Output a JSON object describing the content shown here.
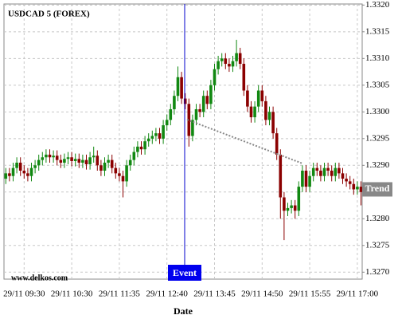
{
  "chart_data": {
    "type": "candlestick",
    "title": "USDCAD 5 (FOREX)",
    "source": "www.delkos.com",
    "x_label": "Date",
    "event": {
      "label": "Event"
    },
    "trend": {
      "label": "Trend",
      "value": 1.32855
    },
    "up_color": "#118811",
    "down_color": "#8b0000",
    "grid": true,
    "ylim": [
      1.32687,
      1.33202
    ],
    "yticks": [
      {
        "value": 1.327,
        "label": "1.3270"
      },
      1.3275,
      {
        "value": 1.328,
        "label": "1.3280"
      },
      1.3285,
      {
        "value": 1.329,
        "label": "1.3290"
      },
      1.3295,
      {
        "value": 1.33,
        "label": "1.3300"
      },
      1.3305,
      {
        "value": 1.331,
        "label": "1.3310"
      },
      1.3315,
      {
        "value": 1.332,
        "label": "1.3320"
      }
    ],
    "categories": [
      null,
      null,
      null,
      null,
      null,
      "29/11 09:30",
      null,
      null,
      null,
      null,
      null,
      null,
      null,
      null,
      null,
      null,
      null,
      null,
      "29/11 10:30",
      null,
      null,
      null,
      null,
      null,
      null,
      null,
      null,
      null,
      null,
      null,
      null,
      "29/11 11:35",
      null,
      null,
      null,
      null,
      null,
      null,
      null,
      null,
      null,
      null,
      null,
      null,
      "29/11 12:40",
      null,
      null,
      null,
      null,
      null,
      null,
      null,
      null,
      null,
      null,
      null,
      null,
      "29/11 13:45",
      null,
      null,
      null,
      null,
      null,
      null,
      null,
      null,
      null,
      null,
      null,
      null,
      "29/11 14:50",
      null,
      null,
      null,
      null,
      null,
      null,
      null,
      null,
      null,
      null,
      null,
      null,
      "29/11 15:55",
      null,
      null,
      null,
      null,
      null,
      null,
      null,
      null,
      null,
      null,
      null,
      null,
      "29/11 17:00",
      null
    ],
    "open": [
      1.32875,
      1.32885,
      1.3288,
      1.32895,
      1.32905,
      1.3289,
      1.32885,
      1.3288,
      1.32895,
      1.329,
      1.3291,
      1.32915,
      1.3292,
      1.32915,
      1.32918,
      1.3291,
      1.32905,
      1.32912,
      1.32915,
      1.32908,
      1.32912,
      1.32905,
      1.3291,
      1.32902,
      1.32915,
      1.32918,
      1.329,
      1.3289,
      1.32905,
      1.3291,
      1.32895,
      1.32885,
      1.3288,
      1.3287,
      1.329,
      1.3291,
      1.32925,
      1.32935,
      1.3293,
      1.32945,
      1.3295,
      1.32955,
      1.3296,
      1.3295,
      1.32975,
      1.32985,
      1.33005,
      1.3303,
      1.33065,
      1.33025,
      1.33015,
      1.32955,
      1.32985,
      1.33005,
      1.33,
      1.3303,
      1.33015,
      1.3305,
      1.3308,
      1.33095,
      1.331,
      1.3309,
      1.33085,
      1.33095,
      1.3311,
      1.3309,
      1.3304,
      1.3301,
      1.3299,
      1.3301,
      1.3304,
      1.3302,
      1.32985,
      1.33,
      1.3296,
      1.3292,
      1.3284,
      1.32815,
      1.3282,
      1.32825,
      1.32815,
      1.3286,
      1.3289,
      1.3286,
      1.3288,
      1.32895,
      1.3289,
      1.3288,
      1.32895,
      1.3289,
      1.3288,
      1.32895,
      1.32885,
      1.32875,
      1.3287,
      1.32865,
      1.32855,
      1.3286
    ],
    "high": [
      1.32895,
      1.32895,
      1.32905,
      1.32915,
      1.32915,
      1.329,
      1.32895,
      1.32905,
      1.3291,
      1.3292,
      1.32925,
      1.3293,
      1.3293,
      1.32928,
      1.32928,
      1.3292,
      1.32922,
      1.32925,
      1.32925,
      1.32922,
      1.32922,
      1.3292,
      1.3292,
      1.32925,
      1.32935,
      1.32928,
      1.3291,
      1.32915,
      1.3292,
      1.3292,
      1.32905,
      1.32895,
      1.3289,
      1.3291,
      1.3292,
      1.32935,
      1.32945,
      1.32945,
      1.32955,
      1.3296,
      1.32965,
      1.3297,
      1.3297,
      1.32985,
      1.32995,
      1.33015,
      1.3304,
      1.33085,
      1.33075,
      1.33035,
      1.33025,
      1.32995,
      1.33015,
      1.33015,
      1.3304,
      1.3304,
      1.3306,
      1.3309,
      1.33105,
      1.3311,
      1.3311,
      1.331,
      1.33105,
      1.33135,
      1.3312,
      1.331,
      1.3305,
      1.3302,
      1.3302,
      1.3305,
      1.3305,
      1.3303,
      1.3301,
      1.3301,
      1.3297,
      1.3293,
      1.3285,
      1.3283,
      1.32835,
      1.32835,
      1.3287,
      1.329,
      1.329,
      1.3289,
      1.32905,
      1.32905,
      1.329,
      1.32905,
      1.32905,
      1.329,
      1.32905,
      1.32905,
      1.32895,
      1.32885,
      1.3288,
      1.32875,
      1.3287,
      1.3287
    ],
    "low": [
      1.32865,
      1.3287,
      1.3287,
      1.32885,
      1.3288,
      1.32875,
      1.3287,
      1.3287,
      1.32885,
      1.3289,
      1.329,
      1.32905,
      1.32905,
      1.32905,
      1.329,
      1.32895,
      1.32895,
      1.32902,
      1.32898,
      1.32898,
      1.32895,
      1.32895,
      1.32892,
      1.32892,
      1.32905,
      1.3289,
      1.3288,
      1.3288,
      1.32895,
      1.32885,
      1.32875,
      1.3287,
      1.3284,
      1.3286,
      1.3289,
      1.329,
      1.32915,
      1.3292,
      1.3292,
      1.32935,
      1.3294,
      1.32945,
      1.3294,
      1.3294,
      1.32965,
      1.32975,
      1.32995,
      1.3302,
      1.33015,
      1.33005,
      1.32935,
      1.32945,
      1.32975,
      1.3299,
      1.3299,
      1.33005,
      1.33005,
      1.3304,
      1.3307,
      1.33085,
      1.3308,
      1.33075,
      1.33075,
      1.33085,
      1.3308,
      1.3303,
      1.33,
      1.3298,
      1.3298,
      1.33,
      1.3301,
      1.32975,
      1.32975,
      1.3295,
      1.3291,
      1.328,
      1.3276,
      1.32805,
      1.3281,
      1.328,
      1.32805,
      1.3285,
      1.3285,
      1.3285,
      1.3287,
      1.3288,
      1.3287,
      1.3287,
      1.3288,
      1.3287,
      1.3287,
      1.32875,
      1.32865,
      1.3286,
      1.32855,
      1.32845,
      1.32845,
      1.32825
    ],
    "close": [
      1.32885,
      1.3288,
      1.32895,
      1.32905,
      1.3289,
      1.32885,
      1.3288,
      1.32895,
      1.329,
      1.3291,
      1.32915,
      1.3292,
      1.32915,
      1.32918,
      1.3291,
      1.32905,
      1.32912,
      1.32915,
      1.32908,
      1.32912,
      1.32905,
      1.3291,
      1.32902,
      1.32915,
      1.32918,
      1.329,
      1.3289,
      1.32905,
      1.3291,
      1.32895,
      1.32885,
      1.3288,
      1.3287,
      1.329,
      1.3291,
      1.32925,
      1.32935,
      1.3293,
      1.32945,
      1.3295,
      1.32955,
      1.3296,
      1.3295,
      1.32975,
      1.32985,
      1.33005,
      1.3303,
      1.33065,
      1.33025,
      1.33015,
      1.32955,
      1.32985,
      1.33005,
      1.33,
      1.3303,
      1.33015,
      1.3305,
      1.3308,
      1.33095,
      1.331,
      1.3309,
      1.33085,
      1.33095,
      1.3311,
      1.3309,
      1.3304,
      1.3301,
      1.3299,
      1.3301,
      1.3304,
      1.3302,
      1.32985,
      1.33,
      1.3296,
      1.3292,
      1.3284,
      1.32815,
      1.3282,
      1.32825,
      1.32815,
      1.3286,
      1.3289,
      1.3286,
      1.3288,
      1.32895,
      1.3289,
      1.3288,
      1.32895,
      1.3289,
      1.3288,
      1.32895,
      1.32885,
      1.32875,
      1.3287,
      1.32865,
      1.32855,
      1.3286,
      1.3285
    ]
  }
}
